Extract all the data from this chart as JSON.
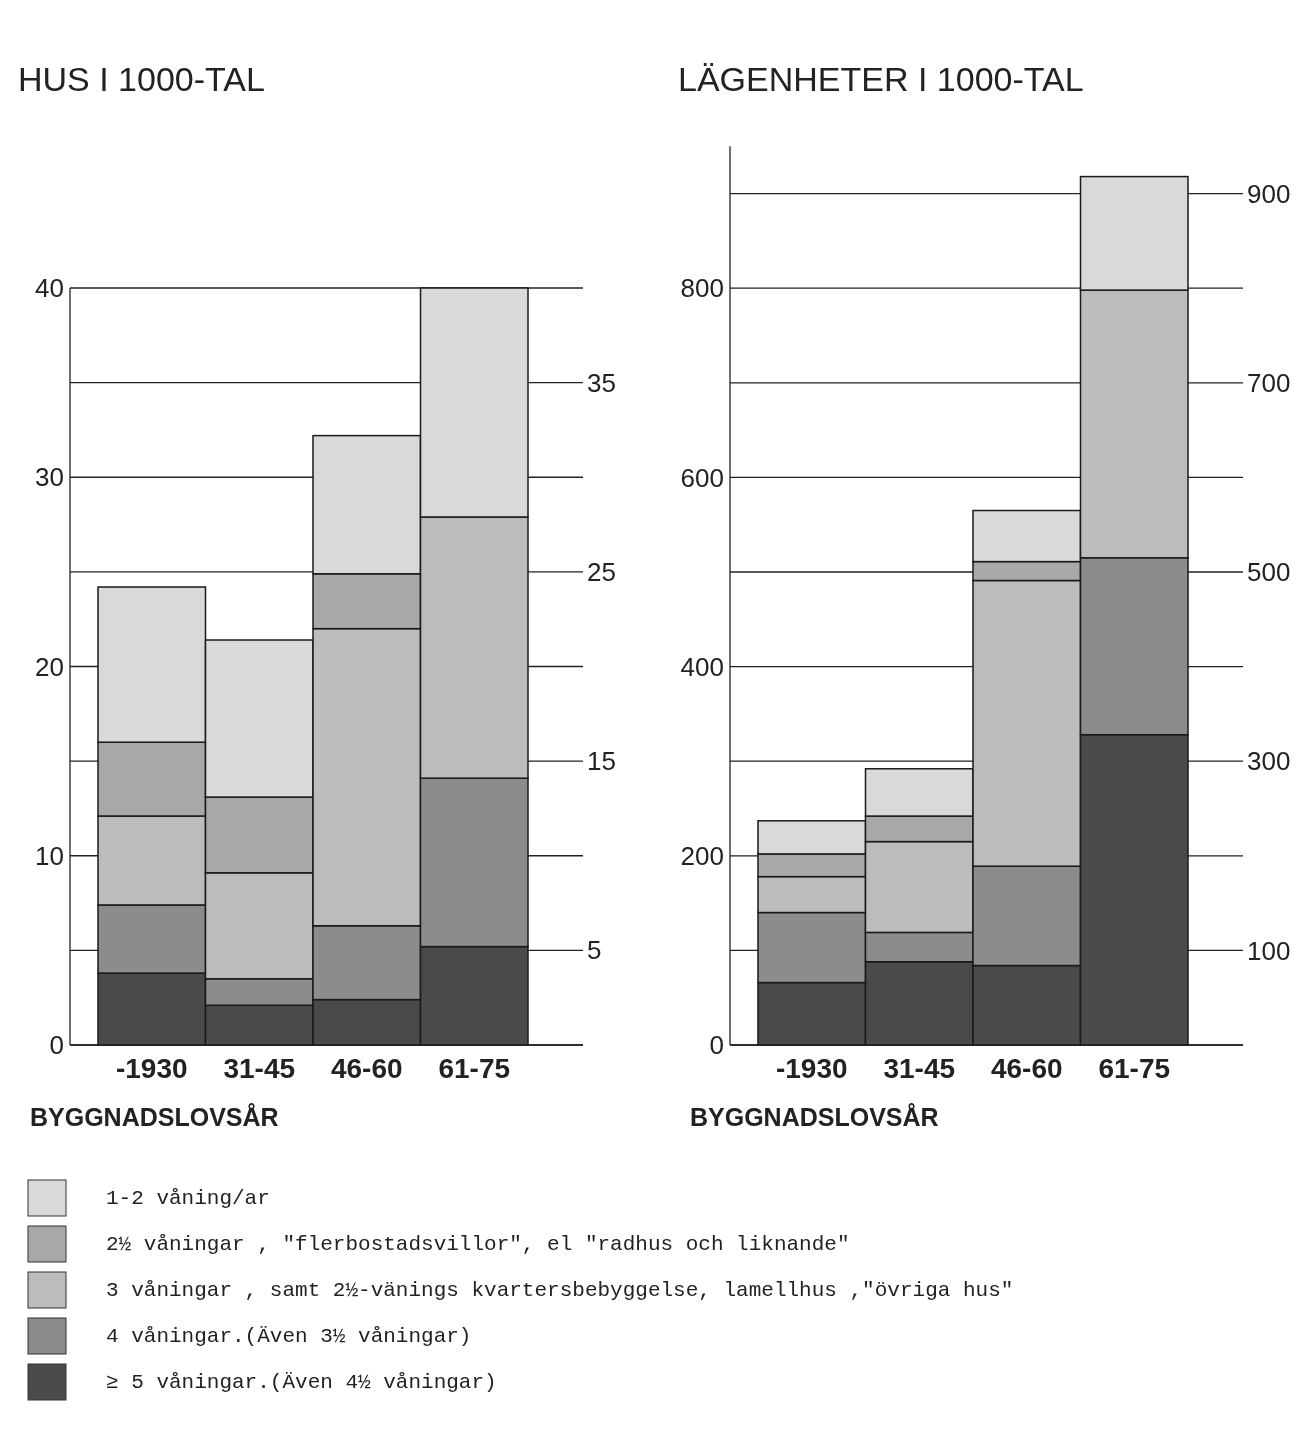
{
  "chart_data": [
    {
      "type": "bar",
      "title": "HUS I 1000-TAL",
      "xlabel": "BYGGNADSLOVSÅR",
      "categories": [
        "-1930",
        "31-45",
        "46-60",
        "61-75"
      ],
      "stacked": true,
      "ylim": [
        0,
        40
      ],
      "yticks": [
        0,
        10,
        20,
        30,
        40
      ],
      "y2lim": [
        0,
        40
      ],
      "y2ticks": [
        5,
        15,
        25,
        35
      ],
      "grid": true,
      "legend": "bottom",
      "series": [
        {
          "name": "≥ 5 våningar.(Även 4½ våningar)",
          "color": "#4a4a4a",
          "values": [
            3.8,
            2.1,
            2.4,
            5.2
          ]
        },
        {
          "name": "4 våningar.(Även 3½ våningar)",
          "color": "#8c8c8c",
          "values": [
            3.6,
            1.4,
            3.9,
            8.9
          ]
        },
        {
          "name": "3 våningar , samt 2½-vänings kvartersbebyggelse, lamellhus ,\"övriga hus\"",
          "color": "#bcbcbc",
          "values": [
            4.7,
            5.6,
            15.7,
            13.8
          ]
        },
        {
          "name": "2½  våningar , \"flerbostadsvillor\", el \"radhus och liknande\"",
          "color": "#a8a8a8",
          "values": [
            3.9,
            4.0,
            2.9,
            null
          ]
        },
        {
          "name": "1-2 våning/ar",
          "color": "#d9d9d9",
          "values": [
            8.2,
            8.3,
            7.3,
            12.1
          ]
        }
      ]
    },
    {
      "type": "bar",
      "title": "LÄGENHETER I 1000-TAL",
      "xlabel": "BYGGNADSLOVSÅR",
      "categories": [
        "-1930",
        "31-45",
        "46-60",
        "61-75"
      ],
      "stacked": true,
      "ylim": [
        0,
        950
      ],
      "yticks": [
        0,
        200,
        400,
        600,
        800
      ],
      "y2lim": [
        0,
        950
      ],
      "y2ticks": [
        100,
        300,
        500,
        700,
        900
      ],
      "grid": true,
      "series": [
        {
          "color": "#4a4a4a",
          "values": [
            66,
            88,
            84,
            328
          ]
        },
        {
          "color": "#8c8c8c",
          "values": [
            74,
            31,
            105,
            187
          ]
        },
        {
          "color": "#bcbcbc",
          "values": [
            38,
            96,
            302,
            283
          ]
        },
        {
          "color": "#a8a8a8",
          "values": [
            24,
            27,
            20,
            null
          ]
        },
        {
          "color": "#d9d9d9",
          "values": [
            35,
            50,
            54,
            120
          ]
        }
      ]
    }
  ]
}
